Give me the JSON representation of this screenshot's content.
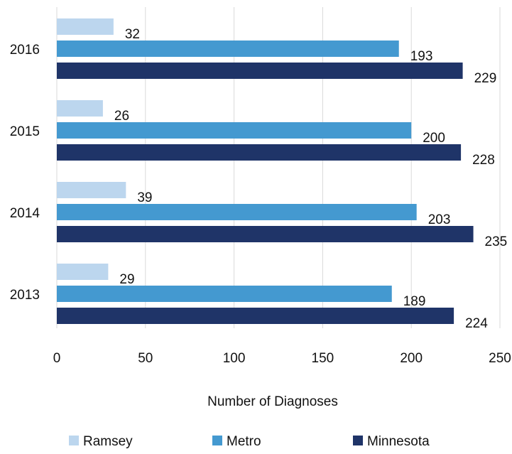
{
  "chart_data": {
    "type": "bar",
    "orientation": "horizontal",
    "categories": [
      "2016",
      "2015",
      "2014",
      "2013"
    ],
    "series": [
      {
        "name": "Ramsey",
        "color": "#bcd6ee",
        "values": [
          32,
          26,
          39,
          29
        ]
      },
      {
        "name": "Metro",
        "color": "#4499d0",
        "values": [
          193,
          200,
          203,
          189
        ]
      },
      {
        "name": "Minnesota",
        "color": "#1f3468",
        "values": [
          229,
          228,
          235,
          224
        ]
      }
    ],
    "xlabel": "Number of Diagnoses",
    "ylabel": "",
    "title": "",
    "xlim": [
      0,
      250
    ],
    "xticks": [
      0,
      50,
      100,
      150,
      200,
      250
    ],
    "grid": "vertical",
    "legend_position": "bottom"
  }
}
